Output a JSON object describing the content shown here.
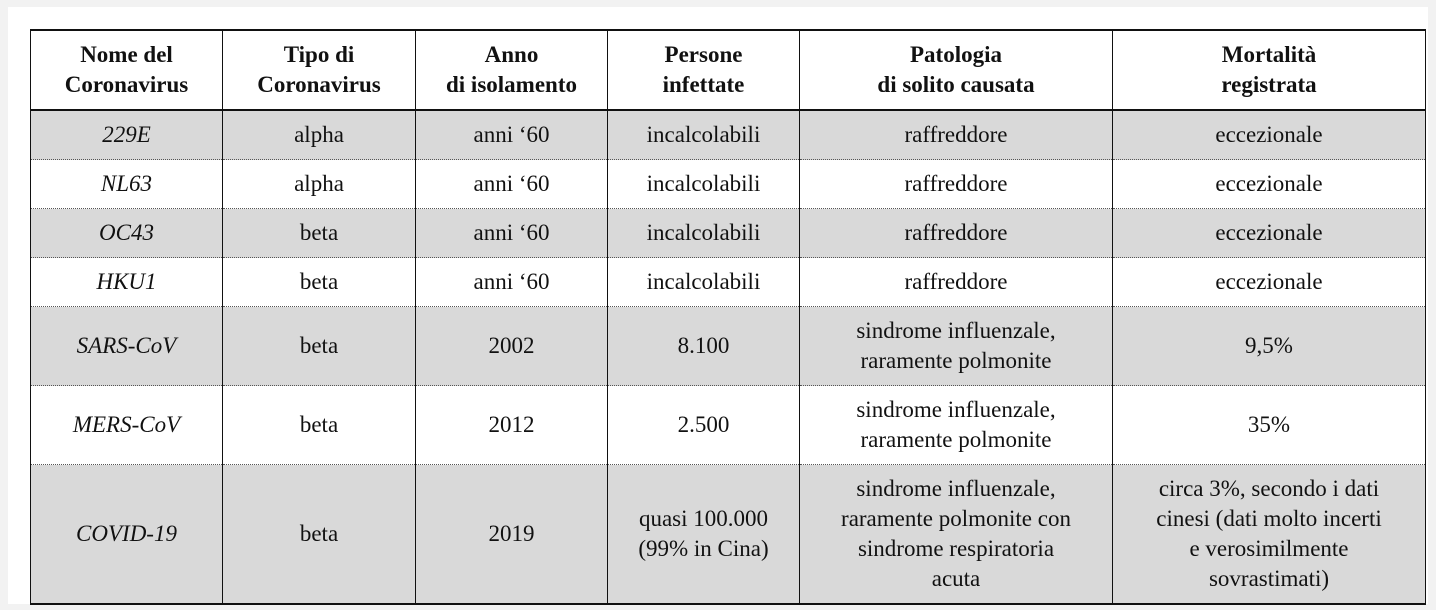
{
  "table": {
    "headers": [
      [
        "Nome del",
        "Coronavirus"
      ],
      [
        "Tipo di",
        "Coronavirus"
      ],
      [
        "Anno",
        "di isolamento"
      ],
      [
        "Persone",
        "infettate"
      ],
      [
        "Patologia",
        "di solito causata"
      ],
      [
        "Mortalità",
        "registrata"
      ]
    ],
    "rows": [
      {
        "name": "229E",
        "type": "alpha",
        "year": "anni ‘60",
        "infected": [
          "incalcolabili"
        ],
        "pathology": [
          "raffreddore"
        ],
        "mortality": [
          "eccezionale"
        ]
      },
      {
        "name": "NL63",
        "type": "alpha",
        "year": "anni ‘60",
        "infected": [
          "incalcolabili"
        ],
        "pathology": [
          "raffreddore"
        ],
        "mortality": [
          "eccezionale"
        ]
      },
      {
        "name": "OC43",
        "type": "beta",
        "year": "anni ‘60",
        "infected": [
          "incalcolabili"
        ],
        "pathology": [
          "raffreddore"
        ],
        "mortality": [
          "eccezionale"
        ]
      },
      {
        "name": "HKU1",
        "type": "beta",
        "year": "anni ‘60",
        "infected": [
          "incalcolabili"
        ],
        "pathology": [
          "raffreddore"
        ],
        "mortality": [
          "eccezionale"
        ]
      },
      {
        "name": "SARS-CoV",
        "type": "beta",
        "year": "2002",
        "infected": [
          "8.100"
        ],
        "pathology": [
          "sindrome influenzale,",
          "raramente polmonite"
        ],
        "mortality": [
          "9,5%"
        ]
      },
      {
        "name": "MERS-CoV",
        "type": "beta",
        "year": "2012",
        "infected": [
          "2.500"
        ],
        "pathology": [
          "sindrome influenzale,",
          "raramente polmonite"
        ],
        "mortality": [
          "35%"
        ]
      },
      {
        "name": "COVID-19",
        "type": "beta",
        "year": "2019",
        "infected": [
          "quasi 100.000",
          "(99% in Cina)"
        ],
        "pathology": [
          "sindrome influenzale,",
          "raramente polmonite con",
          "sindrome respiratoria",
          "acuta"
        ],
        "mortality": [
          "circa 3%, secondo i dati",
          "cinesi (dati molto incerti",
          "e verosimilmente",
          "sovrastimati)"
        ]
      }
    ]
  },
  "colors": {
    "shaded_row": "#d9d9d9",
    "plain_row": "#ffffff",
    "border": "#111111"
  }
}
